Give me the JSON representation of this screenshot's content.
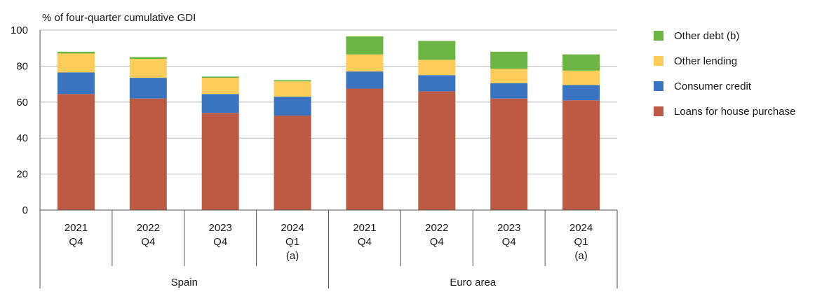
{
  "chart_data": {
    "type": "bar",
    "stacked": true,
    "ylabel": "% of four-quarter cumulative GDI",
    "ylim": [
      0,
      100
    ],
    "yticks": [
      0,
      20,
      40,
      60,
      80,
      100
    ],
    "grid": true,
    "legend_position": "right",
    "categories": [
      {
        "lines": [
          "2021",
          "Q4"
        ]
      },
      {
        "lines": [
          "2022",
          "Q4"
        ]
      },
      {
        "lines": [
          "2023",
          "Q4"
        ]
      },
      {
        "lines": [
          "2024",
          "Q1",
          "(a)"
        ]
      },
      {
        "lines": [
          "2021",
          "Q4"
        ]
      },
      {
        "lines": [
          "2022",
          "Q4"
        ]
      },
      {
        "lines": [
          "2023",
          "Q4"
        ]
      },
      {
        "lines": [
          "2024",
          "Q1",
          "(a)"
        ]
      }
    ],
    "groups": [
      {
        "label": "Spain",
        "count": 4
      },
      {
        "label": "Euro area",
        "count": 4
      }
    ],
    "series": [
      {
        "name": "Loans for house purchase",
        "color": "#bd5a44",
        "values": [
          64.5,
          62,
          54,
          52.5,
          67.5,
          66,
          62,
          61
        ]
      },
      {
        "name": "Consumer credit",
        "color": "#3a73bf",
        "values": [
          12,
          11.5,
          10.5,
          10.5,
          9.5,
          9,
          8.5,
          8.5
        ]
      },
      {
        "name": "Other lending",
        "color": "#fdcc5a",
        "values": [
          10.5,
          10.5,
          9,
          8.5,
          9.5,
          8.5,
          8,
          8
        ]
      },
      {
        "name": "Other debt (b)",
        "color": "#6cb545",
        "values": [
          1,
          1,
          0.7,
          0.7,
          10,
          10.5,
          9.5,
          9
        ]
      }
    ]
  }
}
